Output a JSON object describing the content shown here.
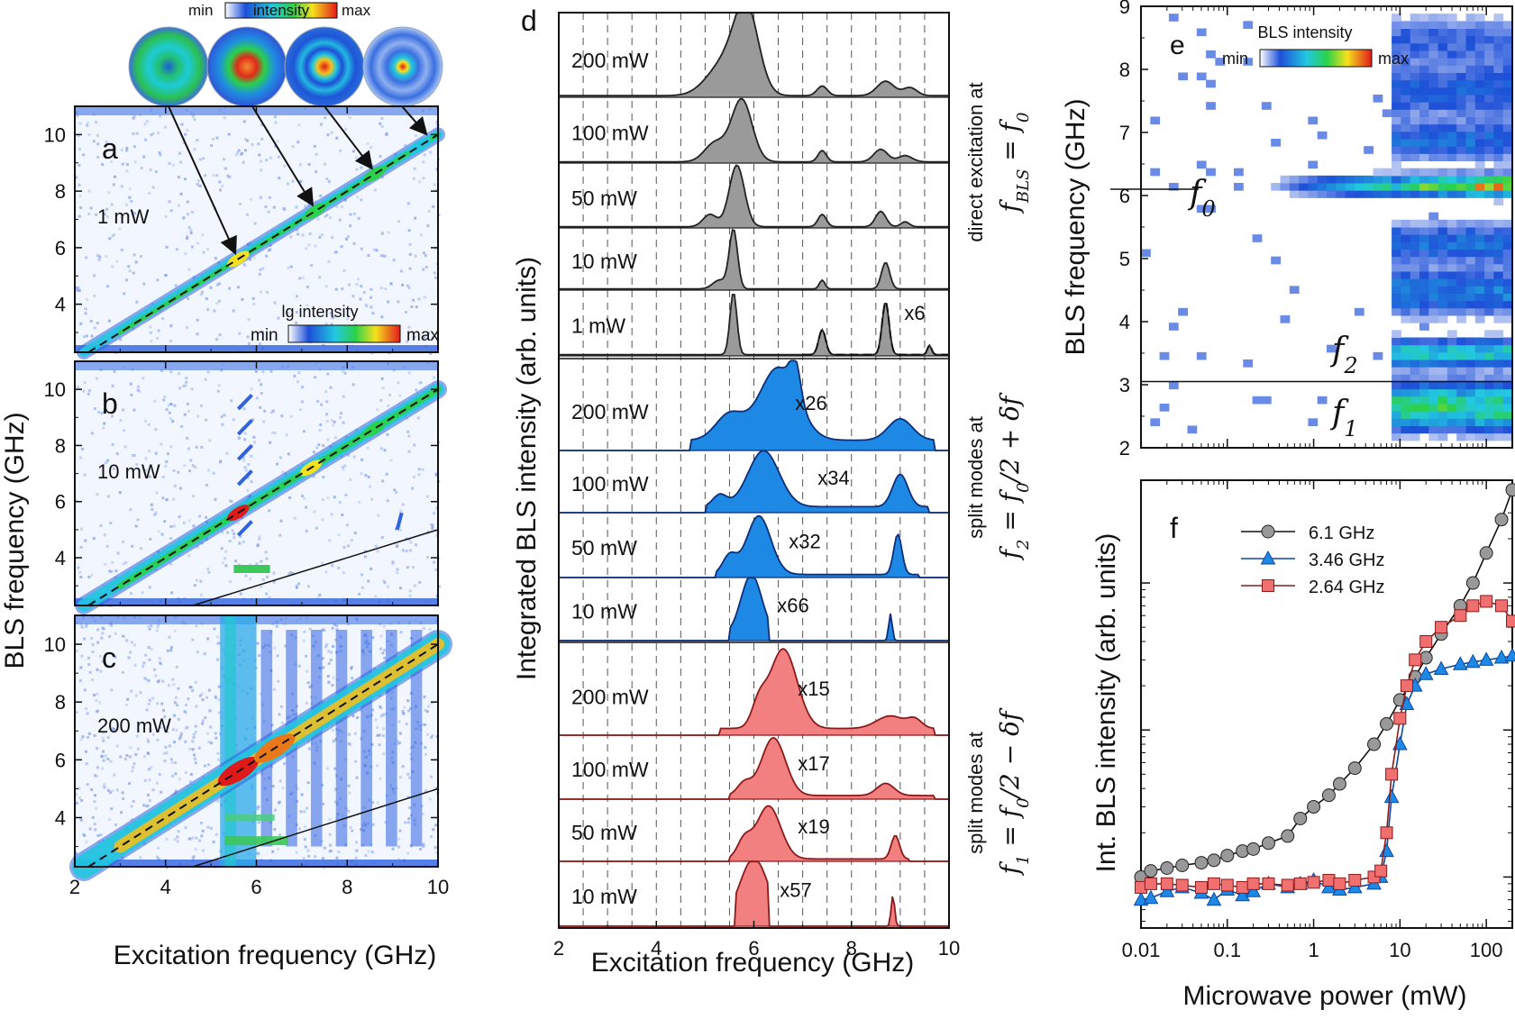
{
  "panels": {
    "a": {
      "letter": "a",
      "power": "1 mW",
      "legend_title": "lg intensity",
      "legend_min": "min",
      "legend_max": "max"
    },
    "b": {
      "letter": "b",
      "power": "10 mW"
    },
    "c": {
      "letter": "c",
      "power": "200 mW"
    },
    "abc_xlabel": "Excitation frequency (GHz)",
    "abc_ylabel": "BLS frequency (GHz)",
    "abc_xticks": [
      "2",
      "4",
      "6",
      "8",
      "10"
    ],
    "abc_yticks": [
      "4",
      "6",
      "8",
      "10"
    ],
    "top_legend": {
      "title": "intensity",
      "min": "min",
      "max": "max"
    },
    "d": {
      "letter": "d",
      "xlabel": "Excitation frequency (GHz)",
      "ylabel": "Integrated BLS intensity (arb. units)",
      "xticks": [
        "2",
        "4",
        "6",
        "8",
        "10"
      ],
      "groups": [
        {
          "side_label": "direct excitation at",
          "formula": "f",
          "formula_sub": "BLS",
          "formula_rest": " = f",
          "formula_sub2": "0",
          "color": "#9a9a9a",
          "line": "#222222",
          "label_color": "#222222"
        },
        {
          "side_label": "split modes at",
          "formula": "f",
          "formula_sub": "2",
          "formula_rest": " = f",
          "formula_sub2": "0",
          "formula_tail": "/2 + δf",
          "color": "#1e88e5",
          "line": "#0d2e7a",
          "label_color": "#1e88e5"
        },
        {
          "side_label": "split modes at",
          "formula": "f",
          "formula_sub": "1",
          "formula_rest": " = f",
          "formula_sub2": "0",
          "formula_tail": "/2 − δf",
          "color": "#f28080",
          "line": "#8b1a1a",
          "label_color": "#f08080"
        }
      ],
      "traces": [
        {
          "group": 0,
          "power": "200 mW",
          "mult": ""
        },
        {
          "group": 0,
          "power": "100 mW",
          "mult": ""
        },
        {
          "group": 0,
          "power": "50 mW",
          "mult": ""
        },
        {
          "group": 0,
          "power": "10 mW",
          "mult": ""
        },
        {
          "group": 0,
          "power": "1 mW",
          "mult": "x6"
        },
        {
          "group": 1,
          "power": "200 mW",
          "mult": "x26"
        },
        {
          "group": 1,
          "power": "100 mW",
          "mult": "x34"
        },
        {
          "group": 1,
          "power": "50 mW",
          "mult": "x32"
        },
        {
          "group": 1,
          "power": "10 mW",
          "mult": "x66"
        },
        {
          "group": 2,
          "power": "200 mW",
          "mult": "x15"
        },
        {
          "group": 2,
          "power": "100 mW",
          "mult": "x17"
        },
        {
          "group": 2,
          "power": "50 mW",
          "mult": "x19"
        },
        {
          "group": 2,
          "power": "10 mW",
          "mult": "x57"
        }
      ]
    },
    "e": {
      "letter": "e",
      "ylabel": "BLS frequency (GHz)",
      "legend_title": "BLS intensity",
      "legend_min": "min",
      "legend_max": "max",
      "yticks": [
        "2",
        "3",
        "4",
        "5",
        "6",
        "7",
        "8",
        "9"
      ],
      "labels": [
        {
          "t": "f",
          "sub": "0",
          "color": "#111111"
        },
        {
          "t": "f",
          "sub": "2",
          "color": "#3a8fd8"
        },
        {
          "t": "f",
          "sub": "1",
          "color": "#e57373"
        }
      ]
    },
    "f": {
      "letter": "f",
      "ylabel": "Int. BLS intensity (arb. units)",
      "xlabel": "Microwave power (mW)",
      "xticks": [
        "0.01",
        "0.1",
        "1",
        "10",
        "100"
      ]
    }
  },
  "chart_data": [
    {
      "type": "heatmap",
      "panel": "a",
      "title": "",
      "xlabel": "Excitation frequency (GHz)",
      "ylabel": "BLS frequency (GHz)",
      "xlim": [
        2,
        10
      ],
      "ylim": [
        2.3,
        11
      ],
      "annotations": [
        "1 mW",
        "lg intensity"
      ],
      "diagonal": "f_BLS = f_exc",
      "hotspots_x": [
        5.6,
        7.3,
        8.6,
        9.6
      ]
    },
    {
      "type": "heatmap",
      "panel": "b",
      "xlabel": "Excitation frequency (GHz)",
      "ylabel": "BLS frequency (GHz)",
      "xlim": [
        2,
        10
      ],
      "ylim": [
        2.3,
        11
      ],
      "annotations": [
        "10 mW"
      ]
    },
    {
      "type": "heatmap",
      "panel": "c",
      "xlabel": "Excitation frequency (GHz)",
      "ylabel": "BLS frequency (GHz)",
      "xlim": [
        2,
        10
      ],
      "ylim": [
        2.3,
        11
      ],
      "annotations": [
        "200 mW"
      ]
    },
    {
      "type": "area",
      "panel": "d",
      "xlabel": "Excitation frequency (GHz)",
      "ylabel": "Integrated BLS intensity (arb. units)",
      "xlim": [
        2,
        10
      ],
      "series": [
        {
          "name": "200 mW",
          "x": [
            2,
            4,
            4.8,
            5.2,
            5.5,
            5.8,
            6.0,
            6.2,
            6.6,
            7.0,
            7.4,
            8.0,
            8.6,
            9.0,
            9.5,
            10
          ],
          "values": [
            0.02,
            0.03,
            0.12,
            0.3,
            0.6,
            0.95,
            0.8,
            0.45,
            0.22,
            0.12,
            0.16,
            0.08,
            0.18,
            0.12,
            0.05,
            0.03
          ]
        },
        {
          "name": "100 mW",
          "x": [
            2,
            4,
            4.8,
            5.2,
            5.5,
            5.8,
            6.0,
            6.3,
            6.8,
            7.4,
            8.0,
            8.6,
            9.0,
            9.5,
            10
          ],
          "values": [
            0.02,
            0.03,
            0.08,
            0.3,
            0.6,
            1.0,
            0.65,
            0.3,
            0.1,
            0.2,
            0.07,
            0.2,
            0.1,
            0.04,
            0.02
          ]
        },
        {
          "name": "50 mW",
          "x": [
            2,
            4,
            4.8,
            5.2,
            5.5,
            5.7,
            5.9,
            6.2,
            6.8,
            7.4,
            8.0,
            8.6,
            9.0,
            9.5,
            10
          ],
          "values": [
            0.02,
            0.02,
            0.05,
            0.25,
            0.6,
            0.9,
            0.6,
            0.25,
            0.06,
            0.2,
            0.05,
            0.2,
            0.08,
            0.03,
            0.02
          ]
        },
        {
          "name": "10 mW",
          "x": [
            2,
            4,
            5.0,
            5.4,
            5.6,
            5.8,
            6.2,
            7.0,
            7.4,
            7.8,
            8.5,
            8.8,
            9.2,
            10
          ],
          "values": [
            0.02,
            0.02,
            0.05,
            0.4,
            1.0,
            0.6,
            0.12,
            0.04,
            0.15,
            0.04,
            0.2,
            0.45,
            0.05,
            0.02
          ]
        },
        {
          "name": "1 mW",
          "x": [
            2,
            4,
            5.0,
            5.4,
            5.6,
            5.8,
            6.2,
            7.0,
            7.4,
            7.6,
            8.0,
            8.5,
            8.8,
            9.0,
            9.5,
            10
          ],
          "values": [
            0.02,
            0.02,
            0.04,
            0.5,
            1.0,
            0.5,
            0.08,
            0.03,
            0.35,
            0.08,
            0.05,
            0.3,
            0.75,
            0.1,
            0.15,
            0.03
          ]
        }
      ],
      "multipliers": [
        "x6",
        "x26",
        "x34",
        "x32",
        "x66",
        "x15",
        "x17",
        "x19",
        "x57"
      ]
    },
    {
      "type": "heatmap",
      "panel": "e",
      "xlabel": "",
      "ylabel": "BLS frequency (GHz)",
      "ylim": [
        2,
        9
      ],
      "xscale": "log",
      "xlim": [
        0.01,
        200
      ],
      "lines_y": [
        6.1,
        3.05
      ],
      "legend": "BLS intensity"
    },
    {
      "type": "scatter",
      "panel": "f",
      "xlabel": "Microwave power (mW)",
      "ylabel": "Int. BLS intensity (arb. units)",
      "xscale": "log",
      "yscale": "log",
      "xlim": [
        0.01,
        200
      ],
      "series": [
        {
          "name": "6.1 GHz",
          "color": "#999999",
          "marker": "circle",
          "x": [
            0.01,
            0.013,
            0.02,
            0.03,
            0.05,
            0.07,
            0.1,
            0.15,
            0.2,
            0.3,
            0.5,
            0.7,
            1,
            1.5,
            2,
            3,
            5,
            7,
            10,
            15,
            20,
            30,
            50,
            70,
            100,
            150,
            200
          ],
          "values": [
            1.0,
            1.1,
            1.15,
            1.2,
            1.25,
            1.3,
            1.4,
            1.5,
            1.55,
            1.7,
            1.9,
            2.5,
            3.0,
            3.6,
            4.3,
            5.5,
            8.0,
            11,
            16,
            23,
            31,
            45,
            70,
            100,
            160,
            270,
            430
          ]
        },
        {
          "name": "3.46 GHz",
          "color": "#1e88e5",
          "marker": "triangle",
          "x": [
            0.01,
            0.013,
            0.02,
            0.03,
            0.05,
            0.07,
            0.1,
            0.15,
            0.2,
            0.3,
            0.5,
            0.7,
            1,
            1.5,
            2,
            3,
            5,
            6,
            7,
            8,
            10,
            12,
            15,
            20,
            30,
            50,
            70,
            100,
            150,
            200
          ],
          "values": [
            0.7,
            0.72,
            0.8,
            0.85,
            0.78,
            0.7,
            0.82,
            0.75,
            0.8,
            0.9,
            0.85,
            0.9,
            0.95,
            0.85,
            0.82,
            0.85,
            0.9,
            1.0,
            1.5,
            3.5,
            8,
            15,
            20,
            24,
            26,
            28,
            29,
            30,
            31,
            32
          ]
        },
        {
          "name": "2.64 GHz",
          "color": "#f07070",
          "marker": "square",
          "x": [
            0.01,
            0.013,
            0.02,
            0.03,
            0.05,
            0.07,
            0.1,
            0.15,
            0.2,
            0.3,
            0.5,
            0.7,
            1,
            1.5,
            2,
            3,
            5,
            6,
            7,
            8,
            10,
            12,
            15,
            20,
            30,
            50,
            70,
            100,
            150,
            200
          ],
          "values": [
            0.85,
            0.9,
            0.9,
            0.88,
            0.85,
            0.9,
            0.88,
            0.85,
            0.9,
            0.9,
            0.88,
            0.9,
            0.92,
            0.95,
            0.9,
            0.95,
            1.0,
            1.1,
            2.0,
            5.0,
            12,
            20,
            30,
            40,
            50,
            60,
            70,
            75,
            70,
            55
          ]
        }
      ]
    }
  ]
}
